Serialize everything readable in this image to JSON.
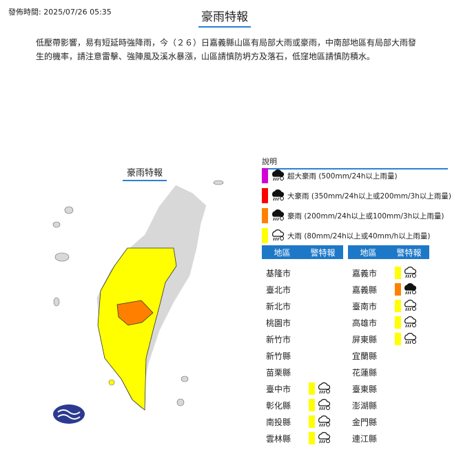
{
  "header": {
    "issue_time": "發佈時間: 2025/07/26 05:35",
    "title": "豪雨特報"
  },
  "description": "低壓帶影響，易有短延時強降雨，今（２６）日嘉義縣山區有局部大雨或豪雨，中南部地區有局部大雨發生的機率，請注意雷擊、強陣風及溪水暴漲，山區請慎防坍方及落石，低窪地區請慎防積水。",
  "map": {
    "title": "豪雨特報"
  },
  "legend": {
    "title": "說明",
    "items": [
      {
        "label": "超大豪雨 (500mm/24h以上雨量)",
        "color": "#d400d4",
        "icon": "extreme-rain-cloud-icon"
      },
      {
        "label": "大豪雨 (350mm/24h以上或200mm/3h以上雨量)",
        "color": "#ff0000",
        "icon": "torrential-rain-cloud-icon"
      },
      {
        "label": "豪雨 (200mm/24h以上或100mm/3h以上雨量)",
        "color": "#ff8000",
        "icon": "heavy-rain-cloud-icon"
      },
      {
        "label": "大雨 (80mm/24h以上或40mm/h以上雨量)",
        "color": "#ffff00",
        "icon": "rain-cloud-icon"
      }
    ]
  },
  "table": {
    "col_region": "地區",
    "col_warning": "警特報",
    "left": [
      {
        "name": "基隆市",
        "level": ""
      },
      {
        "name": "臺北市",
        "level": ""
      },
      {
        "name": "新北市",
        "level": ""
      },
      {
        "name": "桃園市",
        "level": ""
      },
      {
        "name": "新竹市",
        "level": ""
      },
      {
        "name": "新竹縣",
        "level": ""
      },
      {
        "name": "苗栗縣",
        "level": ""
      },
      {
        "name": "臺中市",
        "level": "大雨"
      },
      {
        "name": "彰化縣",
        "level": "大雨"
      },
      {
        "name": "南投縣",
        "level": "大雨"
      },
      {
        "name": "雲林縣",
        "level": "大雨"
      }
    ],
    "right": [
      {
        "name": "嘉義市",
        "level": "大雨"
      },
      {
        "name": "嘉義縣",
        "level": "豪雨"
      },
      {
        "name": "臺南市",
        "level": "大雨"
      },
      {
        "name": "高雄市",
        "level": "大雨"
      },
      {
        "name": "屏東縣",
        "level": "大雨"
      },
      {
        "name": "宜蘭縣",
        "level": ""
      },
      {
        "name": "花蓮縣",
        "level": ""
      },
      {
        "name": "臺東縣",
        "level": ""
      },
      {
        "name": "澎湖縣",
        "level": ""
      },
      {
        "name": "金門縣",
        "level": ""
      },
      {
        "name": "連江縣",
        "level": ""
      }
    ]
  },
  "colors": {
    "大雨": "#ffff00",
    "豪雨": "#ff8000",
    "accent": "#1e78c8",
    "land": "#d8d8d8"
  }
}
